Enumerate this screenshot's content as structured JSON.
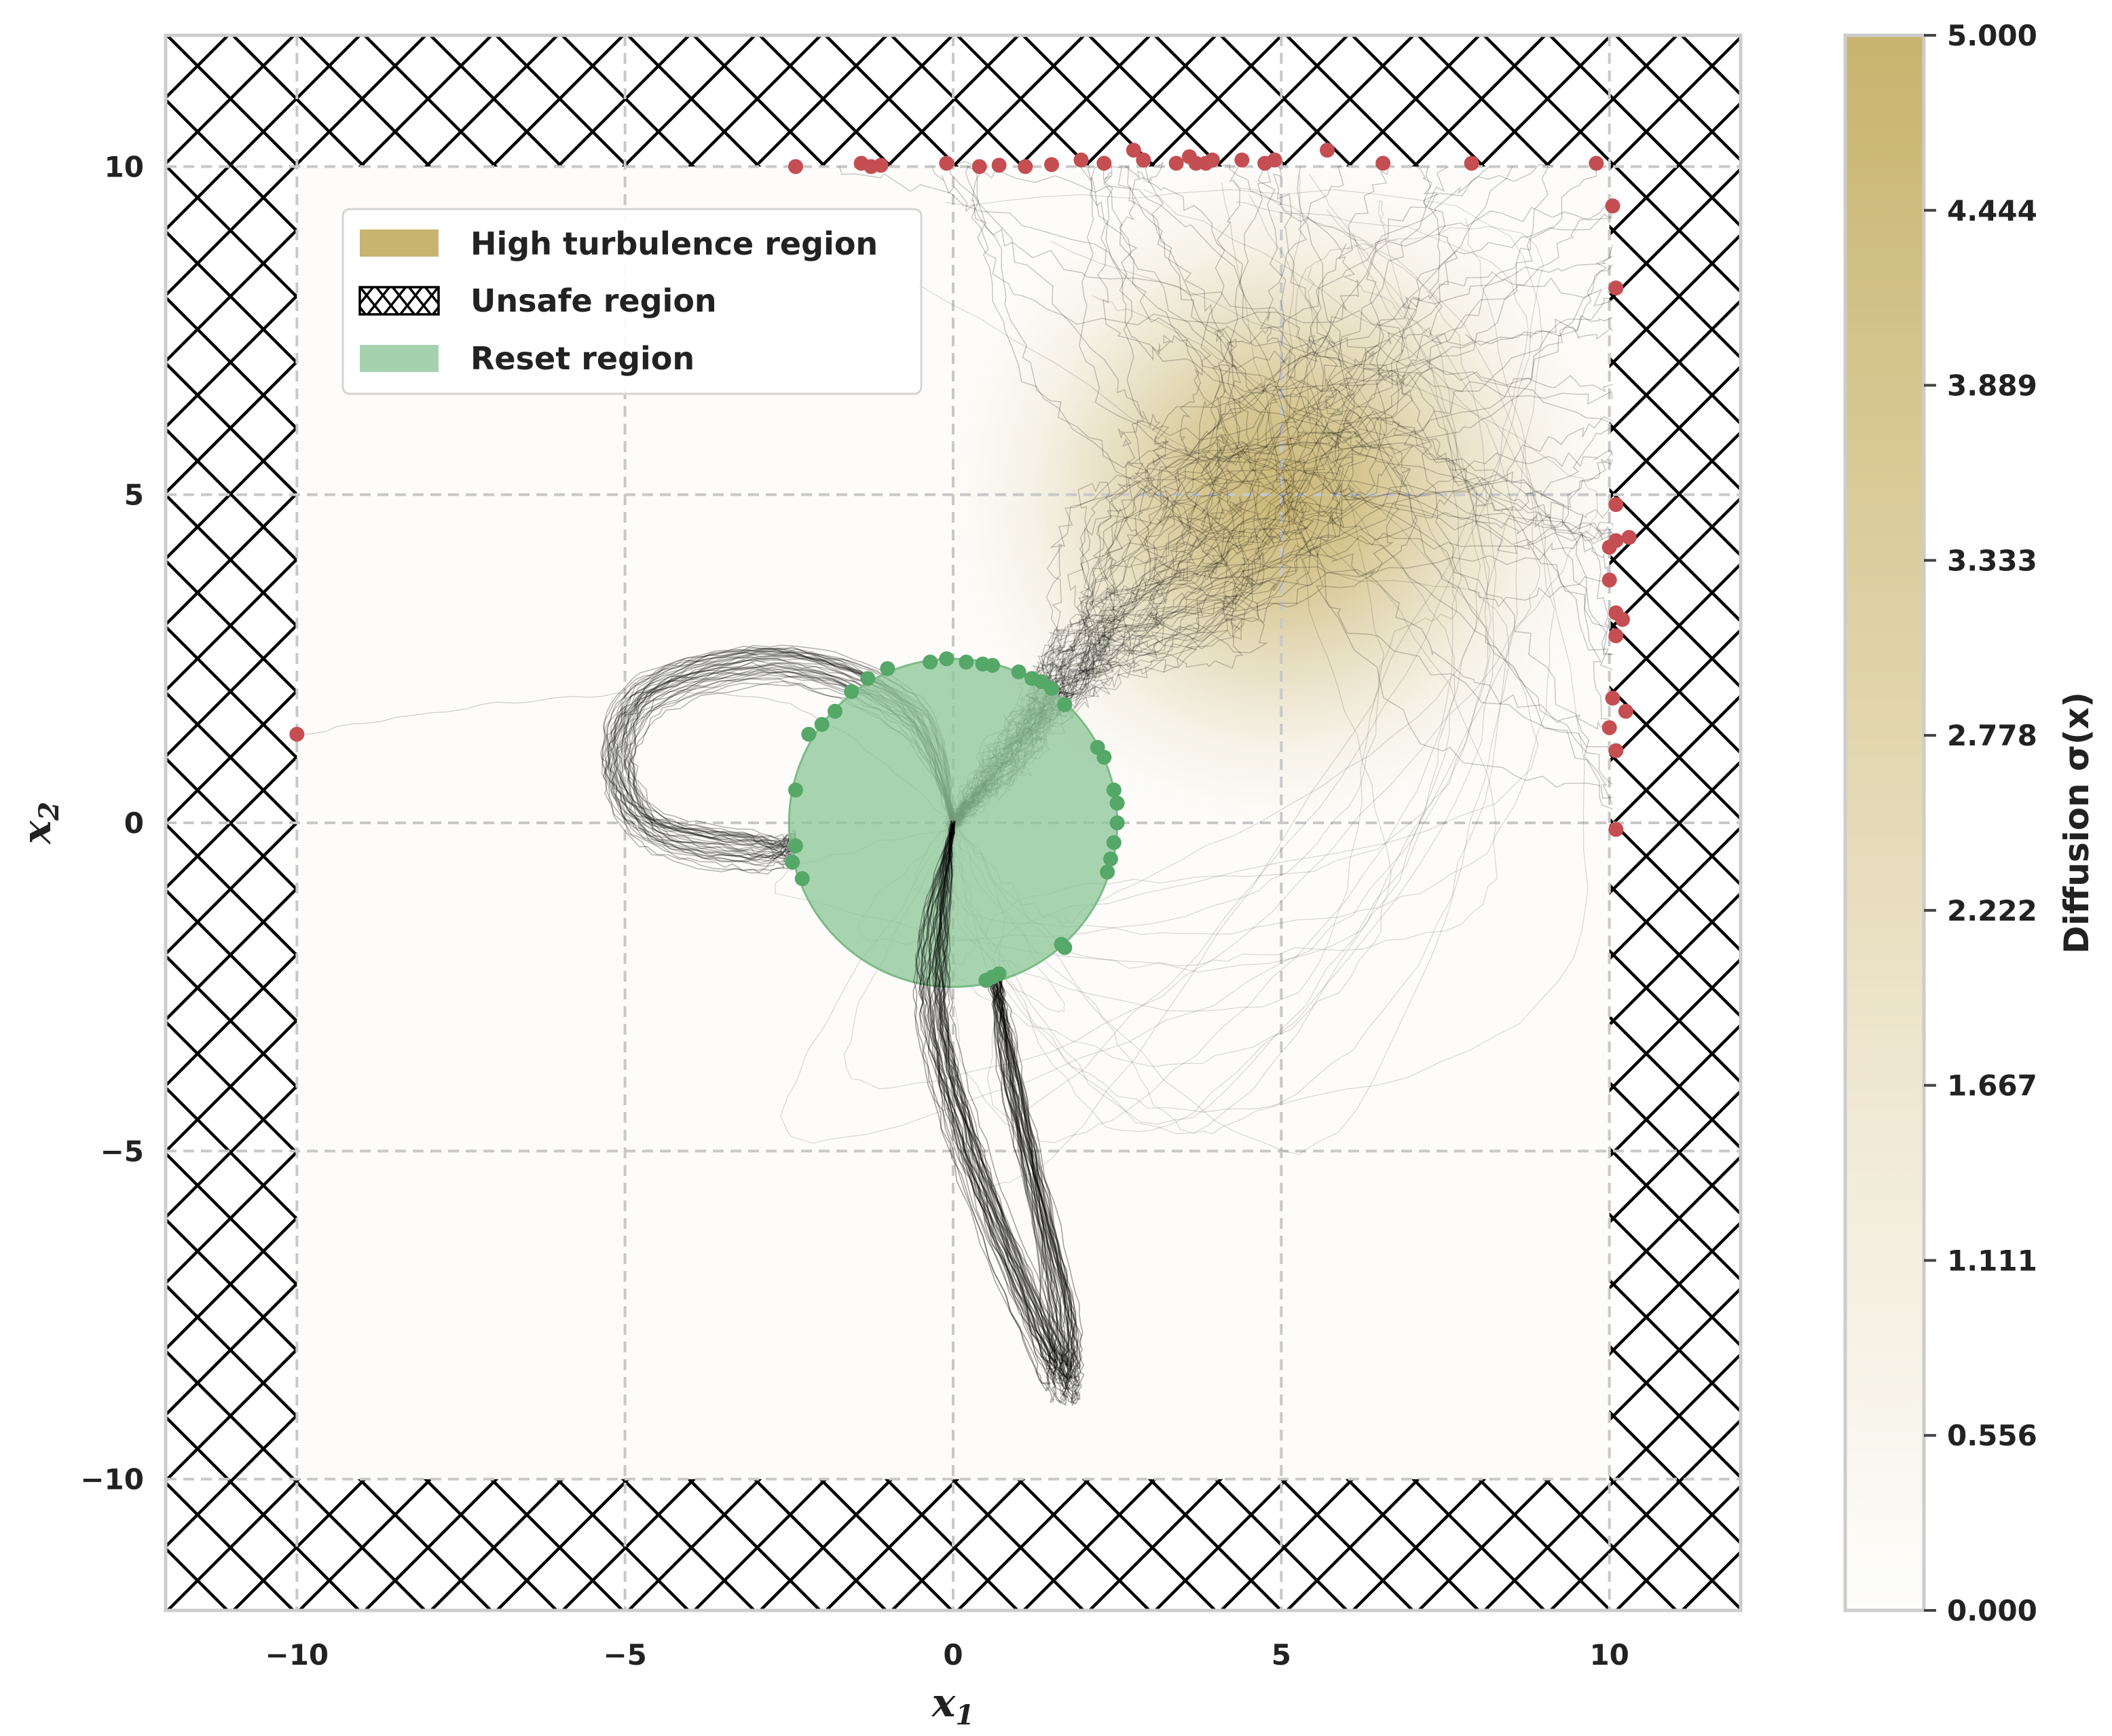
{
  "chart_data": {
    "type": "scatter",
    "xlabel": "x",
    "xlabel_sub": "1",
    "ylabel": "x",
    "ylabel_sub": "2",
    "xlim": [
      -12,
      12
    ],
    "ylim": [
      -12,
      12
    ],
    "xticks": [
      -10,
      -5,
      0,
      5,
      10
    ],
    "yticks": [
      -10,
      -5,
      0,
      5,
      10
    ],
    "xtick_labels": [
      "−10",
      "−5",
      "0",
      "5",
      "10"
    ],
    "ytick_labels": [
      "−10",
      "−5",
      "0",
      "5",
      "10"
    ],
    "grid": true,
    "legend": {
      "placement": "upper-left",
      "entries": [
        {
          "label": "High turbulence region",
          "color": "#c8b46e",
          "style": "fill"
        },
        {
          "label": "Unsafe region",
          "color": "#000000",
          "style": "hatch"
        },
        {
          "label": "Reset region",
          "color": "#8fc79a",
          "style": "fill"
        }
      ]
    },
    "safe_box": {
      "xmin": -10,
      "xmax": 10,
      "ymin": -10,
      "ymax": 10
    },
    "turbulence": {
      "center": [
        5,
        5
      ],
      "sigma_max": 5.0,
      "spread": 2.2,
      "color": "#c8b46e"
    },
    "reset_region": {
      "center": [
        0,
        0
      ],
      "radius": 2.5,
      "color": "#8fc79a"
    },
    "colorbar": {
      "label": "Diffusion σ(x)",
      "ticks": [
        "0.000",
        "0.556",
        "1.111",
        "1.667",
        "2.222",
        "2.778",
        "3.333",
        "3.889",
        "4.444",
        "5.000"
      ],
      "range": [
        0,
        5
      ]
    },
    "series": [
      {
        "style": "scatter",
        "color": "#c44e52",
        "points": [
          [
            -2.4,
            10.0
          ],
          [
            -1.4,
            10.05
          ],
          [
            -1.25,
            10.0
          ],
          [
            -1.1,
            10.02
          ],
          [
            -0.1,
            10.05
          ],
          [
            0.4,
            10.0
          ],
          [
            0.7,
            10.02
          ],
          [
            1.1,
            10.0
          ],
          [
            1.5,
            10.03
          ],
          [
            1.95,
            10.1
          ],
          [
            2.3,
            10.05
          ],
          [
            2.75,
            10.25
          ],
          [
            2.9,
            10.1
          ],
          [
            3.4,
            10.05
          ],
          [
            3.6,
            10.15
          ],
          [
            3.7,
            10.05
          ],
          [
            3.85,
            10.05
          ],
          [
            3.95,
            10.1
          ],
          [
            4.4,
            10.1
          ],
          [
            4.75,
            10.05
          ],
          [
            4.9,
            10.1
          ],
          [
            5.7,
            10.25
          ],
          [
            6.55,
            10.05
          ],
          [
            7.9,
            10.05
          ],
          [
            9.8,
            10.05
          ],
          [
            10.05,
            9.4
          ],
          [
            10.1,
            8.15
          ],
          [
            10.1,
            4.85
          ],
          [
            10.1,
            4.3
          ],
          [
            10.3,
            4.35
          ],
          [
            10.0,
            4.2
          ],
          [
            10.0,
            3.7
          ],
          [
            10.1,
            3.2
          ],
          [
            10.2,
            3.1
          ],
          [
            10.1,
            2.85
          ],
          [
            10.05,
            1.9
          ],
          [
            10.25,
            1.7
          ],
          [
            10.0,
            1.45
          ],
          [
            10.1,
            1.1
          ],
          [
            10.1,
            -0.1
          ],
          [
            -10.0,
            1.35
          ]
        ]
      },
      {
        "style": "scatter",
        "color": "#55a868",
        "points": [
          [
            -0.35,
            2.45
          ],
          [
            -0.1,
            2.5
          ],
          [
            0.2,
            2.45
          ],
          [
            0.45,
            2.42
          ],
          [
            0.6,
            2.4
          ],
          [
            1.0,
            2.3
          ],
          [
            1.2,
            2.2
          ],
          [
            1.35,
            2.15
          ],
          [
            1.5,
            2.05
          ],
          [
            1.7,
            1.8
          ],
          [
            -1.0,
            2.35
          ],
          [
            -1.3,
            2.2
          ],
          [
            -1.55,
            2.0
          ],
          [
            -1.8,
            1.7
          ],
          [
            -2.0,
            1.5
          ],
          [
            -2.2,
            1.35
          ],
          [
            -2.4,
            0.5
          ],
          [
            -2.4,
            -0.35
          ],
          [
            -2.45,
            -0.6
          ],
          [
            -2.3,
            -0.85
          ],
          [
            2.2,
            1.15
          ],
          [
            2.3,
            1.0
          ],
          [
            2.45,
            0.5
          ],
          [
            2.5,
            0.3
          ],
          [
            2.5,
            0.0
          ],
          [
            2.45,
            -0.3
          ],
          [
            2.4,
            -0.55
          ],
          [
            2.35,
            -0.75
          ],
          [
            1.65,
            -1.85
          ],
          [
            1.7,
            -1.9
          ],
          [
            0.6,
            -2.35
          ],
          [
            0.7,
            -2.3
          ],
          [
            0.5,
            -2.4
          ]
        ]
      }
    ]
  }
}
